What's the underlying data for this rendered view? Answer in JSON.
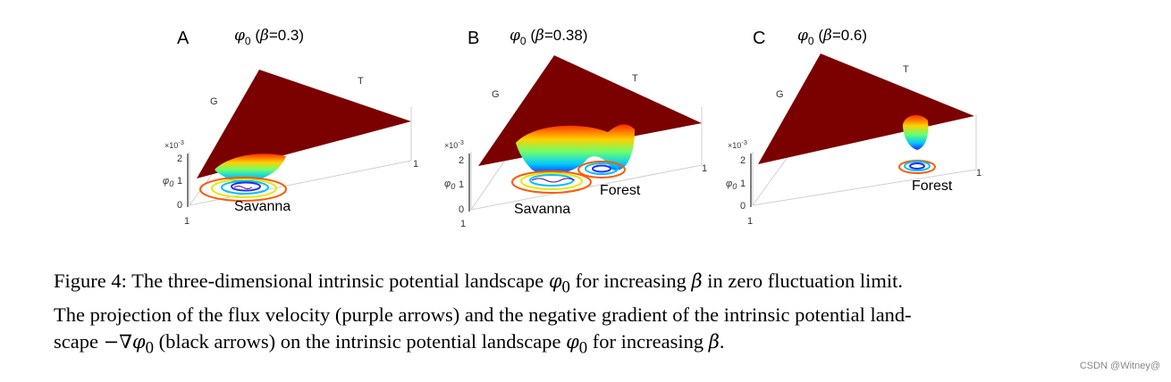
{
  "panels": [
    {
      "label": "A",
      "title_phi": "φ",
      "title_sub": "0",
      "title_open": " (",
      "title_beta": "β",
      "title_rest": "=0.3)",
      "axis_g": "G",
      "axis_t": "T",
      "exp": "×10",
      "exp_pow": "-3",
      "ylabel": "φ",
      "ylabel_sub": "0",
      "tick_2": "2",
      "tick_1": "1",
      "tick_0": "0",
      "tick_left": "1",
      "tick_right": "1",
      "regions": [
        "Savanna"
      ]
    },
    {
      "label": "B",
      "title_phi": "φ",
      "title_sub": "0",
      "title_open": " (",
      "title_beta": "β",
      "title_rest": "=0.38)",
      "axis_g": "G",
      "axis_t": "T",
      "exp": "×10",
      "exp_pow": "-3",
      "ylabel": "φ",
      "ylabel_sub": "0",
      "tick_2": "2",
      "tick_1": "1",
      "tick_0": "0",
      "tick_left": "1",
      "tick_right": "1",
      "regions": [
        "Forest",
        "Savanna"
      ]
    },
    {
      "label": "C",
      "title_phi": "φ",
      "title_sub": "0",
      "title_open": " (",
      "title_beta": "β",
      "title_rest": "=0.6)",
      "axis_g": "G",
      "axis_t": "T",
      "exp": "×10",
      "exp_pow": "-3",
      "ylabel": "φ",
      "ylabel_sub": "0",
      "tick_2": "2",
      "tick_1": "1",
      "tick_0": "0",
      "tick_left": "1",
      "tick_right": "1",
      "regions": [
        "Forest"
      ]
    }
  ],
  "caption": {
    "line1_a": "Figure 4: The three-dimensional intrinsic potential landscape ",
    "phi": "φ",
    "sub0": "0",
    "line1_b": " for increasing ",
    "beta": "β",
    "line1_c": " in zero fluctuation limit.",
    "line2": "The projection of the flux velocity (purple arrows) and the negative gradient of the intrinsic potential land-",
    "line3_a": "scape ",
    "neg_nabla": "−∇",
    "line3_b": " (black arrows) on the intrinsic potential landscape ",
    "line3_c": " for increasing ",
    "line3_d": "."
  },
  "watermark": "CSDN @Witney@",
  "colors": {
    "surface": "#7a0000",
    "surface_edge": "#5a0000",
    "well_top": "#ff3000",
    "well_mid": "#ffe000",
    "well_low": "#00d0ff",
    "well_bottom": "#1a2cff"
  }
}
